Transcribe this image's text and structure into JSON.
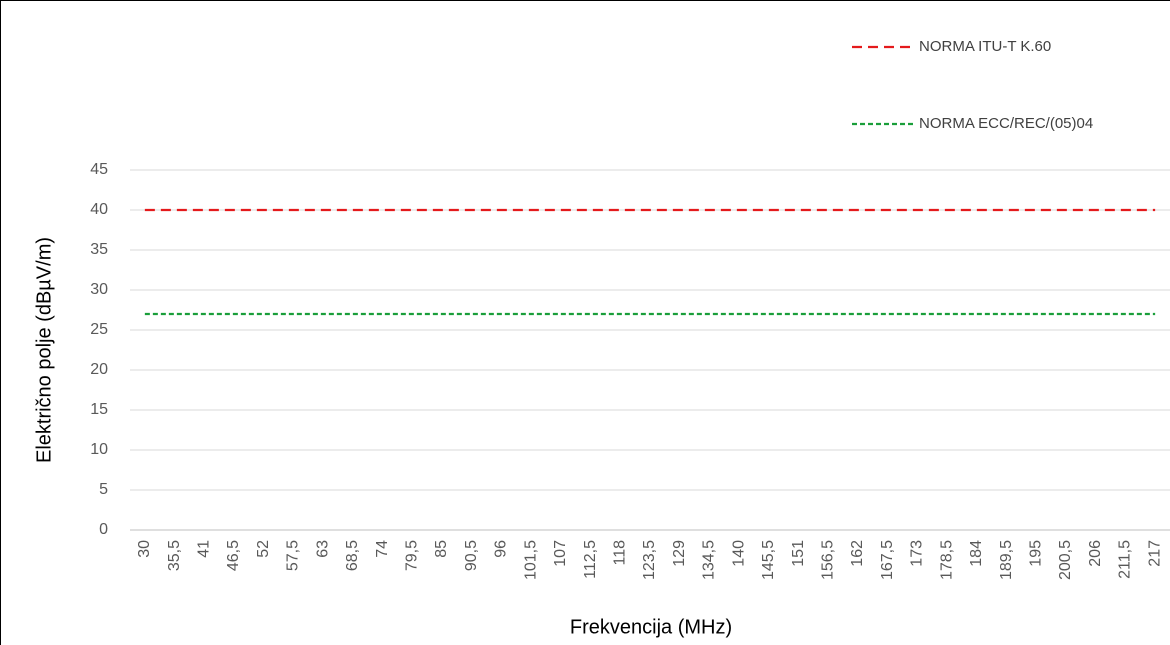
{
  "chart_data": {
    "type": "line",
    "x_label": "Frekvencija (MHz)",
    "y_label": "Električno polje (dBµV/m)",
    "categories": [
      "30",
      "35,5",
      "41",
      "46,5",
      "52",
      "57,5",
      "63",
      "68,5",
      "74",
      "79,5",
      "85",
      "90,5",
      "96",
      "101,5",
      "107",
      "112,5",
      "118",
      "123,5",
      "129",
      "134,5",
      "140",
      "145,5",
      "151",
      "156,5",
      "162",
      "167,5",
      "173",
      "178,5",
      "184",
      "189,5",
      "195",
      "200,5",
      "206",
      "211,5",
      "217"
    ],
    "series": [
      {
        "name": "NORMA ITU-T K.60",
        "color": "#e41a1c",
        "linestyle": "dashed",
        "values": [
          40,
          40,
          40,
          40,
          40,
          40,
          40,
          40,
          40,
          40,
          40,
          40,
          40,
          40,
          40,
          40,
          40,
          40,
          40,
          40,
          40,
          40,
          40,
          40,
          40,
          40,
          40,
          40,
          40,
          40,
          40,
          40,
          40,
          40,
          40
        ]
      },
      {
        "name": "NORMA ECC/REC/(05)04",
        "color": "#1a9e3a",
        "linestyle": "dotted",
        "values": [
          27,
          27,
          27,
          27,
          27,
          27,
          27,
          27,
          27,
          27,
          27,
          27,
          27,
          27,
          27,
          27,
          27,
          27,
          27,
          27,
          27,
          27,
          27,
          27,
          27,
          27,
          27,
          27,
          27,
          27,
          27,
          27,
          27,
          27,
          27
        ]
      }
    ],
    "ylim": [
      0,
      45
    ],
    "yticks": [
      0,
      5,
      10,
      15,
      20,
      25,
      30,
      35,
      40,
      45
    ],
    "grid": true
  }
}
